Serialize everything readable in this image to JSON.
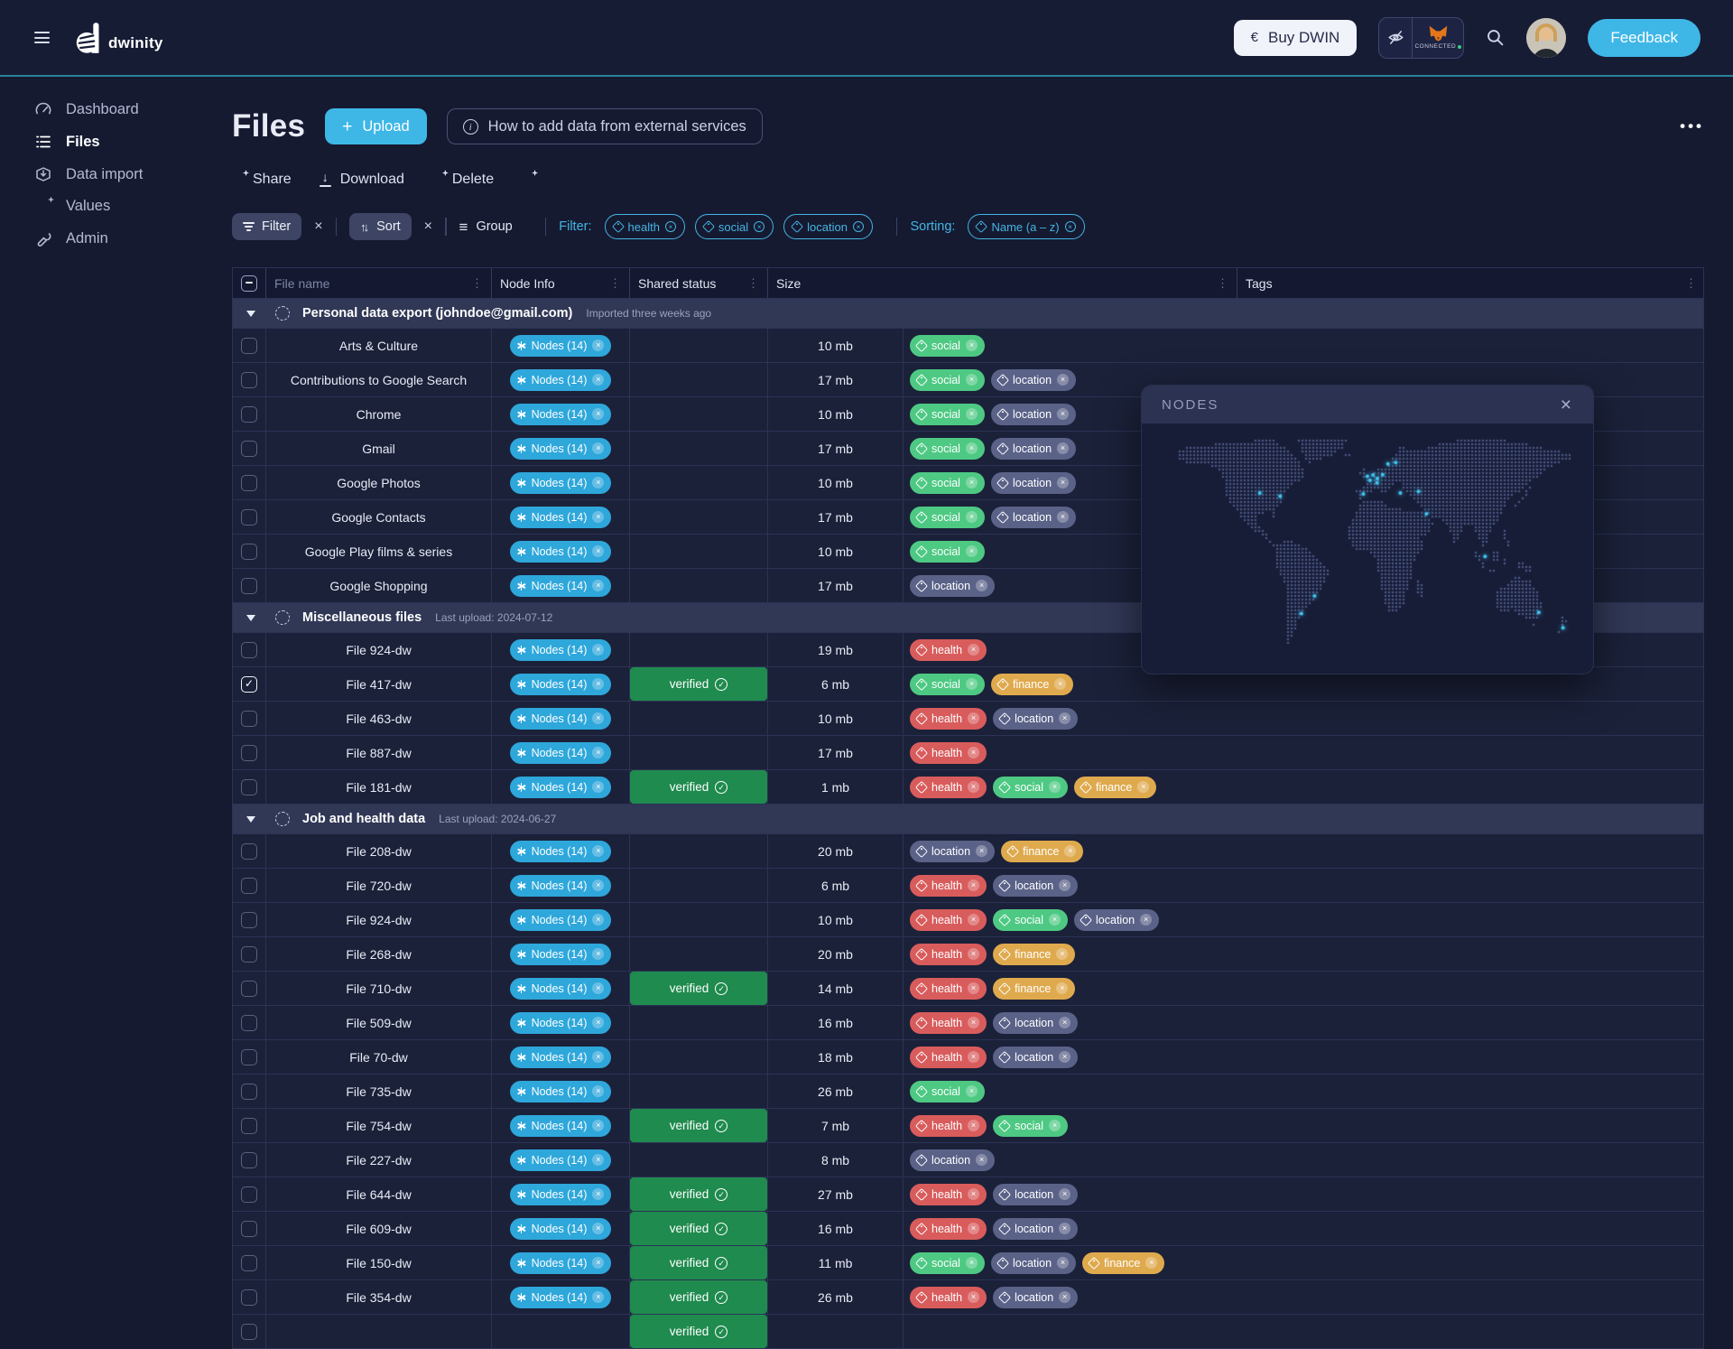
{
  "brand": {
    "name": "dwinity"
  },
  "header": {
    "buy_currency": "€",
    "buy_label": "Buy DWIN",
    "wallet_status": "CONNECTED",
    "feedback_label": "Feedback"
  },
  "sidebar": {
    "items": [
      {
        "label": "Dashboard"
      },
      {
        "label": "Files"
      },
      {
        "label": "Data import"
      },
      {
        "label": "Values"
      },
      {
        "label": "Admin"
      }
    ]
  },
  "page": {
    "title": "Files",
    "upload_label": "Upload",
    "help_label": "How to add data from external services",
    "more_label": "•••"
  },
  "toolbar": {
    "share": "Share",
    "download": "Download",
    "delete": "Delete"
  },
  "filterbar": {
    "filter_button": "Filter",
    "sort_button": "Sort",
    "group_button": "Group",
    "filter_label": "Filter:",
    "filter_tags": [
      "health",
      "social",
      "location"
    ],
    "sorting_label": "Sorting:",
    "sorting_value": "Name (a – z)"
  },
  "table": {
    "columns": [
      "File name",
      "Node Info",
      "Shared status",
      "Size",
      "Tags"
    ],
    "node_pill_label": "Nodes (14)",
    "verified_label": "verified",
    "groups": [
      {
        "title": "Personal data export (johndoe@gmail.com)",
        "meta": "Imported three weeks ago",
        "rows": [
          {
            "name": "Arts & Culture",
            "size": "10 mb",
            "verified": false,
            "checked": false,
            "tags": [
              "social"
            ]
          },
          {
            "name": "Contributions to Google Search",
            "size": "17 mb",
            "verified": false,
            "checked": false,
            "tags": [
              "social",
              "location"
            ]
          },
          {
            "name": "Chrome",
            "size": "10 mb",
            "verified": false,
            "checked": false,
            "tags": [
              "social",
              "location"
            ]
          },
          {
            "name": "Gmail",
            "size": "17 mb",
            "verified": false,
            "checked": false,
            "tags": [
              "social",
              "location"
            ]
          },
          {
            "name": "Google Photos",
            "size": "10 mb",
            "verified": false,
            "checked": false,
            "tags": [
              "social",
              "location"
            ]
          },
          {
            "name": "Google Contacts",
            "size": "17 mb",
            "verified": false,
            "checked": false,
            "tags": [
              "social",
              "location"
            ]
          },
          {
            "name": "Google Play films & series",
            "size": "10 mb",
            "verified": false,
            "checked": false,
            "tags": [
              "social"
            ]
          },
          {
            "name": "Google Shopping",
            "size": "17 mb",
            "verified": false,
            "checked": false,
            "tags": [
              "location"
            ]
          }
        ]
      },
      {
        "title": "Miscellaneous files",
        "meta": "Last upload: 2024-07-12",
        "rows": [
          {
            "name": "File 924-dw",
            "size": "19 mb",
            "verified": false,
            "checked": false,
            "tags": [
              "health"
            ]
          },
          {
            "name": "File 417-dw",
            "size": "6 mb",
            "verified": true,
            "checked": true,
            "tags": [
              "social",
              "finance"
            ]
          },
          {
            "name": "File 463-dw",
            "size": "10 mb",
            "verified": false,
            "checked": false,
            "tags": [
              "health",
              "location"
            ]
          },
          {
            "name": "File 887-dw",
            "size": "17 mb",
            "verified": false,
            "checked": false,
            "tags": [
              "health"
            ]
          },
          {
            "name": "File 181-dw",
            "size": "1 mb",
            "verified": true,
            "checked": false,
            "tags": [
              "health",
              "social",
              "finance"
            ]
          }
        ]
      },
      {
        "title": "Job and health data",
        "meta": "Last upload: 2024-06-27",
        "rows": [
          {
            "name": "File 208-dw",
            "size": "20 mb",
            "verified": false,
            "checked": false,
            "tags": [
              "location",
              "finance"
            ]
          },
          {
            "name": "File 720-dw",
            "size": "6 mb",
            "verified": false,
            "checked": false,
            "tags": [
              "health",
              "location"
            ]
          },
          {
            "name": "File 924-dw",
            "size": "10 mb",
            "verified": false,
            "checked": false,
            "tags": [
              "health",
              "social",
              "location"
            ]
          },
          {
            "name": "File 268-dw",
            "size": "20 mb",
            "verified": false,
            "checked": false,
            "tags": [
              "health",
              "finance"
            ]
          },
          {
            "name": "File 710-dw",
            "size": "14 mb",
            "verified": true,
            "checked": false,
            "tags": [
              "health",
              "finance"
            ]
          },
          {
            "name": "File 509-dw",
            "size": "16 mb",
            "verified": false,
            "checked": false,
            "tags": [
              "health",
              "location"
            ]
          },
          {
            "name": "File 70-dw",
            "size": "18 mb",
            "verified": false,
            "checked": false,
            "tags": [
              "health",
              "location"
            ]
          },
          {
            "name": "File 735-dw",
            "size": "26 mb",
            "verified": false,
            "checked": false,
            "tags": [
              "social"
            ]
          },
          {
            "name": "File 754-dw",
            "size": "7 mb",
            "verified": true,
            "checked": false,
            "tags": [
              "health",
              "social"
            ]
          },
          {
            "name": "File 227-dw",
            "size": "8 mb",
            "verified": false,
            "checked": false,
            "tags": [
              "location"
            ]
          },
          {
            "name": "File 644-dw",
            "size": "27 mb",
            "verified": true,
            "checked": false,
            "tags": [
              "health",
              "location"
            ]
          },
          {
            "name": "File 609-dw",
            "size": "16 mb",
            "verified": true,
            "checked": false,
            "tags": [
              "health",
              "location"
            ]
          },
          {
            "name": "File 150-dw",
            "size": "11 mb",
            "verified": true,
            "checked": false,
            "tags": [
              "social",
              "location",
              "finance"
            ]
          },
          {
            "name": "File 354-dw",
            "size": "26 mb",
            "verified": true,
            "checked": false,
            "tags": [
              "health",
              "location"
            ]
          },
          {
            "name": "",
            "size": "",
            "verified": true,
            "checked": false,
            "tags": []
          }
        ]
      }
    ]
  },
  "dialog": {
    "title": "NODES"
  },
  "colors": {
    "accent": "#3eb7e7",
    "verified_green": "#1f8b4e",
    "nodes_blue": "#2ea7db",
    "filter_cyan": "#45b5e2",
    "tag_health": "#d95c5c",
    "tag_social": "#4ec983",
    "tag_finance": "#dfaa4e",
    "tag_location": "#5a6288"
  }
}
